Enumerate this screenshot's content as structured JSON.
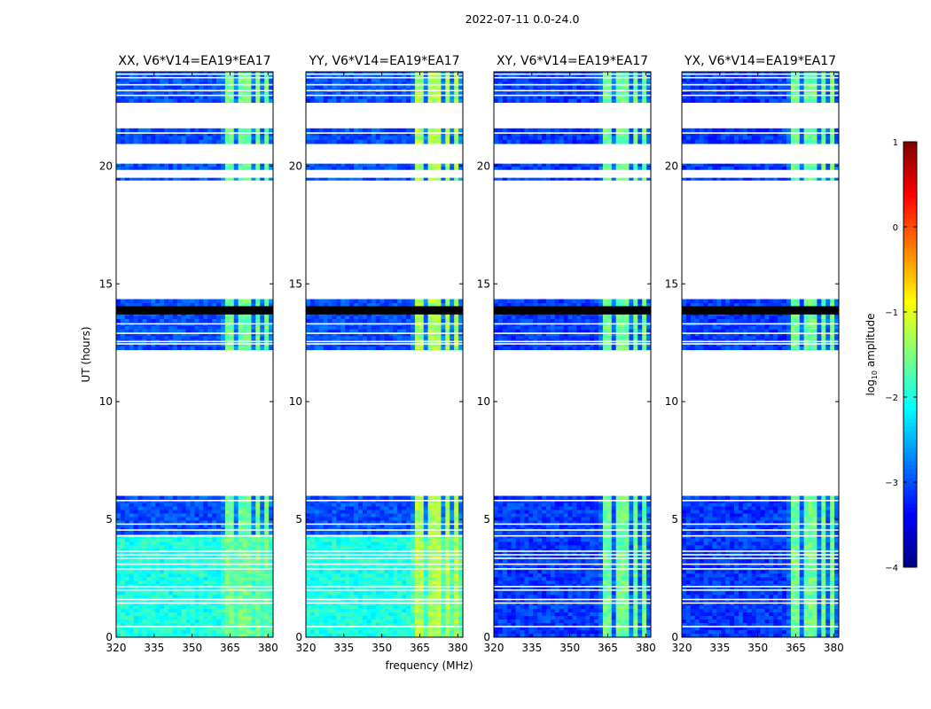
{
  "chart_data": {
    "type": "heatmap",
    "suptitle": "2022-07-11 0.0-24.0",
    "xlabel": "frequency (MHz)",
    "ylabel": "UT (hours)",
    "xlim": [
      320,
      382
    ],
    "ylim": [
      0,
      24
    ],
    "xticks": [
      320,
      335,
      350,
      365,
      380
    ],
    "yticks": [
      0,
      5,
      10,
      15,
      20
    ],
    "colorbar": {
      "label": "log10 amplitude",
      "label_main": "log",
      "label_sub": "10",
      "label_rest": " amplitude",
      "min": -4,
      "max": 1,
      "ticks": [
        -4,
        -3,
        -2,
        -1,
        0,
        1
      ],
      "tick_labels": [
        "−4",
        "−3",
        "−2",
        "−1",
        "0",
        "1"
      ],
      "colormap": "jet"
    },
    "data_hour_ranges": [
      [
        0,
        6
      ],
      [
        12.2,
        13.65
      ],
      [
        13.65,
        14
      ],
      [
        14,
        14.35
      ],
      [
        19.4,
        19.5
      ],
      [
        19.85,
        20.1
      ],
      [
        20.95,
        21.6
      ],
      [
        22.7,
        24
      ]
    ],
    "flagged_hour_ranges": [
      [
        13.7,
        14.05
      ]
    ],
    "gap_hour_lines": [
      0.45,
      1.45,
      1.6,
      2.0,
      2.15,
      2.9,
      3.1,
      3.35,
      3.5,
      3.65,
      4.3,
      4.55,
      4.8,
      5.8,
      12.45,
      12.55,
      12.9,
      13.3,
      21.4,
      23.0,
      23.2,
      23.45,
      23.75,
      23.9
    ],
    "rfi_channel_centers_mhz": [
      364.5,
      369,
      372,
      376,
      379.5
    ],
    "panels": [
      {
        "title": "XX, V6*V14=EA19*EA17",
        "polarization": "XX",
        "baseline_level_low_hours": -2.0,
        "baseline_level_high_hours": -3.0,
        "rfi_level": -1.6
      },
      {
        "title": "YY, V6*V14=EA19*EA17",
        "polarization": "YY",
        "baseline_level_low_hours": -2.0,
        "baseline_level_high_hours": -3.0,
        "rfi_level": -1.3
      },
      {
        "title": "XY, V6*V14=EA19*EA17",
        "polarization": "XY",
        "baseline_level_low_hours": -3.1,
        "baseline_level_high_hours": -3.1,
        "rfi_level": -1.6
      },
      {
        "title": "YX, V6*V14=EA19*EA17",
        "polarization": "YX",
        "baseline_level_low_hours": -3.1,
        "baseline_level_high_hours": -3.1,
        "rfi_level": -1.6
      }
    ]
  }
}
